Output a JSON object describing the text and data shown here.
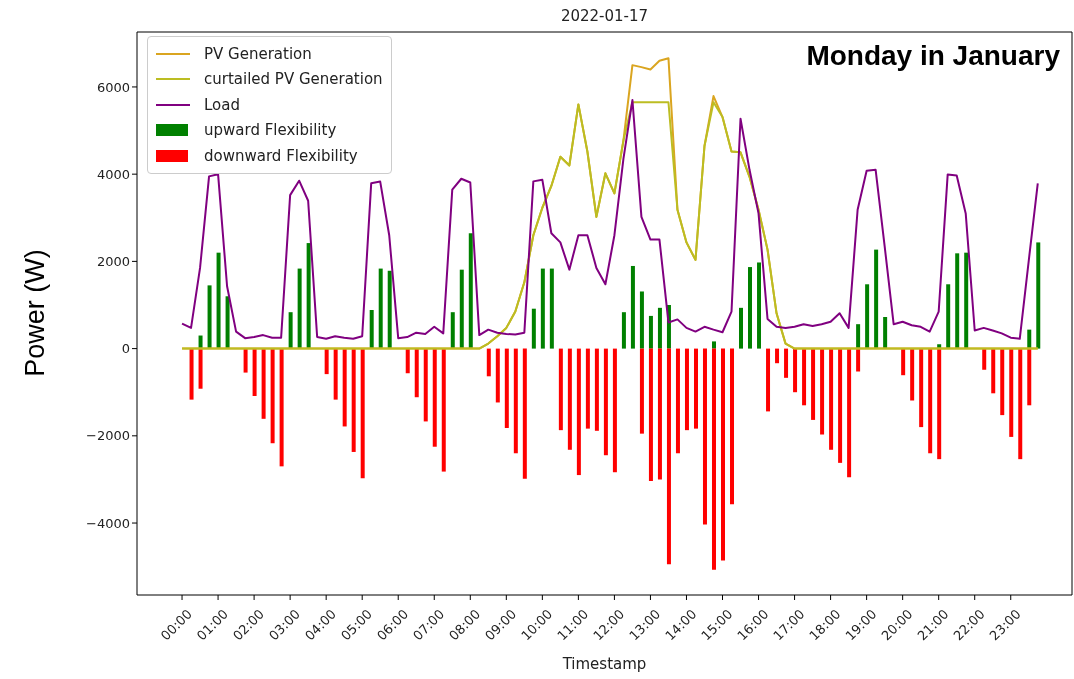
{
  "chart_data": {
    "type": "bar",
    "title": "2022-01-17",
    "xlabel": "Timestamp",
    "ylabel": "Power (W)",
    "annotations": [
      "Monday in January"
    ],
    "x": [
      0,
      0.25,
      0.5,
      0.75,
      1,
      1.25,
      1.5,
      1.75,
      2,
      2.25,
      2.5,
      2.75,
      3,
      3.25,
      3.5,
      3.75,
      4,
      4.25,
      4.5,
      4.75,
      5,
      5.25,
      5.5,
      5.75,
      6,
      6.25,
      6.5,
      6.75,
      7,
      7.25,
      7.5,
      7.75,
      8,
      8.25,
      8.5,
      8.75,
      9,
      9.25,
      9.5,
      9.75,
      10,
      10.25,
      10.5,
      10.75,
      11,
      11.25,
      11.5,
      11.75,
      12,
      12.25,
      12.5,
      12.75,
      13,
      13.25,
      13.5,
      13.75,
      14,
      14.25,
      14.5,
      14.75,
      15,
      15.25,
      15.5,
      15.75,
      16,
      16.25,
      16.5,
      16.75,
      17,
      17.25,
      17.5,
      17.75,
      18,
      18.25,
      18.5,
      18.75,
      19,
      19.25,
      19.5,
      19.75,
      20,
      20.25,
      20.5,
      20.75,
      21,
      21.25,
      21.5,
      21.75,
      22,
      22.25,
      22.5,
      22.75,
      23,
      23.25,
      23.5,
      23.75
    ],
    "series": [
      {
        "name": "PV Generation",
        "type": "line",
        "color": "#daa520",
        "values": [
          0,
          0,
          0,
          0,
          0,
          0,
          0,
          0,
          0,
          0,
          0,
          0,
          0,
          0,
          0,
          0,
          0,
          0,
          0,
          0,
          0,
          0,
          0,
          0,
          0,
          0,
          0,
          0,
          0,
          0,
          0,
          0,
          0,
          0,
          115,
          285,
          475,
          850,
          1520,
          2600,
          3230,
          3730,
          4400,
          4200,
          5600,
          4520,
          3020,
          4020,
          3560,
          4770,
          6500,
          6455,
          6400,
          6600,
          6660,
          3185,
          2435,
          2035,
          4645,
          5790,
          5310,
          4520,
          4500,
          3940,
          3185,
          2270,
          810,
          115,
          0,
          0,
          0,
          0,
          0,
          0,
          0,
          0,
          0,
          0,
          0,
          0,
          0,
          0,
          0,
          0,
          0,
          0,
          0,
          0,
          0,
          0,
          0,
          0,
          0,
          0,
          0,
          0
        ]
      },
      {
        "name": "curtailed PV Generation",
        "type": "line",
        "color": "#bcbd22",
        "values": [
          0,
          0,
          0,
          0,
          0,
          0,
          0,
          0,
          0,
          0,
          0,
          0,
          0,
          0,
          0,
          0,
          0,
          0,
          0,
          0,
          0,
          0,
          0,
          0,
          0,
          0,
          0,
          0,
          0,
          0,
          0,
          0,
          0,
          0,
          115,
          285,
          475,
          850,
          1520,
          2600,
          3230,
          3730,
          4400,
          4200,
          5600,
          4520,
          3020,
          4020,
          3560,
          4770,
          5650,
          5650,
          5650,
          5650,
          5650,
          3185,
          2435,
          2035,
          4645,
          5650,
          5310,
          4520,
          4500,
          3940,
          3185,
          2270,
          810,
          115,
          0,
          0,
          0,
          0,
          0,
          0,
          0,
          0,
          0,
          0,
          0,
          0,
          0,
          0,
          0,
          0,
          0,
          0,
          0,
          0,
          0,
          0,
          0,
          0,
          0,
          0,
          0,
          0
        ]
      },
      {
        "name": "Load",
        "type": "line",
        "color": "#800080",
        "values": [
          575,
          475,
          1850,
          3950,
          4000,
          1430,
          390,
          240,
          265,
          310,
          250,
          250,
          3520,
          3850,
          3390,
          265,
          225,
          285,
          250,
          225,
          285,
          3790,
          3830,
          2600,
          240,
          265,
          365,
          335,
          500,
          350,
          3645,
          3895,
          3810,
          310,
          435,
          365,
          335,
          325,
          365,
          3835,
          3870,
          2645,
          2435,
          1810,
          2600,
          2600,
          1850,
          1475,
          2600,
          4350,
          5700,
          3020,
          2500,
          2500,
          600,
          670,
          475,
          390,
          500,
          435,
          375,
          850,
          5270,
          4100,
          3100,
          680,
          500,
          475,
          500,
          560,
          520,
          560,
          615,
          810,
          475,
          3185,
          4080,
          4100,
          2350,
          560,
          615,
          535,
          500,
          390,
          850,
          3995,
          3970,
          3100,
          415,
          475,
          415,
          350,
          250,
          225,
          2020,
          3790
        ]
      },
      {
        "name": "upward Flexibility",
        "color": "#008000",
        "values": [
          null,
          null,
          300,
          1450,
          2200,
          1200,
          null,
          null,
          null,
          null,
          null,
          null,
          835,
          1835,
          2420,
          null,
          null,
          null,
          null,
          null,
          null,
          885,
          1835,
          1785,
          null,
          null,
          null,
          null,
          null,
          null,
          835,
          1810,
          2645,
          null,
          null,
          null,
          null,
          null,
          null,
          915,
          1835,
          1835,
          null,
          null,
          null,
          null,
          null,
          null,
          null,
          835,
          1895,
          1310,
          750,
          935,
          1000,
          null,
          null,
          null,
          null,
          165,
          null,
          null,
          935,
          1870,
          1975,
          null,
          null,
          null,
          null,
          null,
          null,
          null,
          null,
          null,
          null,
          560,
          1475,
          2270,
          725,
          null,
          null,
          null,
          null,
          null,
          100,
          1475,
          2185,
          2200,
          null,
          null,
          null,
          null,
          null,
          null,
          435,
          2435
        ]
      },
      {
        "name": "downward Flexibility",
        "color": "#ff0000",
        "values": [
          null,
          -1170,
          -920,
          null,
          null,
          null,
          null,
          -550,
          -1085,
          -1610,
          -2170,
          -2700,
          null,
          null,
          null,
          null,
          -585,
          -1170,
          -1785,
          -2370,
          -2970,
          null,
          null,
          null,
          null,
          -565,
          -1115,
          -1670,
          -2250,
          -2820,
          null,
          null,
          null,
          null,
          -635,
          -1235,
          -1820,
          -2400,
          -2985,
          null,
          null,
          null,
          -1870,
          -2320,
          -2900,
          -1835,
          -1885,
          -2445,
          -2835,
          null,
          null,
          -1950,
          -3035,
          -3000,
          -4945,
          -2400,
          -1870,
          -1835,
          -4035,
          -5070,
          -4860,
          -3570,
          null,
          null,
          null,
          -1440,
          -335,
          -670,
          -1000,
          -1300,
          -1635,
          -1970,
          -2320,
          -2620,
          -2950,
          -525,
          null,
          null,
          null,
          null,
          -610,
          -1190,
          -1800,
          -2400,
          -2535,
          null,
          null,
          null,
          null,
          -485,
          -1025,
          -1525,
          -2025,
          -2535,
          -1300,
          null
        ]
      }
    ],
    "stacked": true,
    "xlim": [
      -1.25,
      24.7
    ],
    "xticks": [
      {
        "value": 0,
        "label": "00:00"
      },
      {
        "value": 1,
        "label": "01:00"
      },
      {
        "value": 2,
        "label": "02:00"
      },
      {
        "value": 3,
        "label": "03:00"
      },
      {
        "value": 4,
        "label": "04:00"
      },
      {
        "value": 5,
        "label": "05:00"
      },
      {
        "value": 6,
        "label": "06:00"
      },
      {
        "value": 7,
        "label": "07:00"
      },
      {
        "value": 8,
        "label": "08:00"
      },
      {
        "value": 9,
        "label": "09:00"
      },
      {
        "value": 10,
        "label": "10:00"
      },
      {
        "value": 11,
        "label": "11:00"
      },
      {
        "value": 12,
        "label": "12:00"
      },
      {
        "value": 13,
        "label": "13:00"
      },
      {
        "value": 14,
        "label": "14:00"
      },
      {
        "value": 15,
        "label": "15:00"
      },
      {
        "value": 16,
        "label": "16:00"
      },
      {
        "value": 17,
        "label": "17:00"
      },
      {
        "value": 18,
        "label": "18:00"
      },
      {
        "value": 19,
        "label": "19:00"
      },
      {
        "value": 20,
        "label": "20:00"
      },
      {
        "value": 21,
        "label": "21:00"
      },
      {
        "value": 22,
        "label": "22:00"
      },
      {
        "value": 23,
        "label": "23:00"
      }
    ],
    "ylim": [
      -5650,
      7260
    ],
    "yticks": [
      {
        "value": -4000,
        "label": "−4000"
      },
      {
        "value": -2000,
        "label": "−2000"
      },
      0,
      2000,
      4000,
      6000
    ],
    "grid": false,
    "legend": "top left"
  }
}
